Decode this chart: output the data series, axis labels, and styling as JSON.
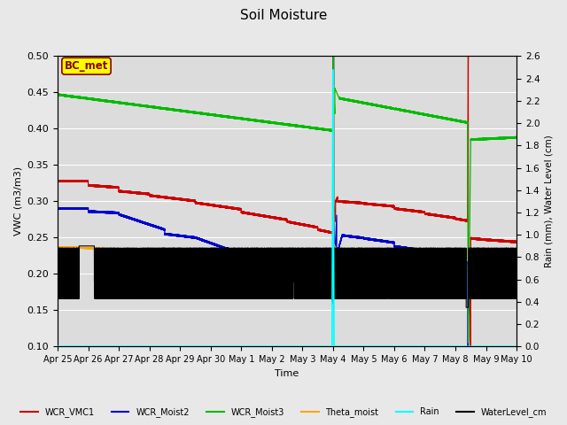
{
  "title": "Soil Moisture",
  "xlabel": "Time",
  "ylabel_left": "VWC (m3/m3)",
  "ylabel_right": "Rain (mm), Water Level (cm)",
  "ylim_left": [
    0.1,
    0.5
  ],
  "ylim_right": [
    0.0,
    2.6
  ],
  "x_tick_labels": [
    "Apr 25",
    "Apr 26",
    "Apr 27",
    "Apr 28",
    "Apr 29",
    "Apr 30",
    "May 1",
    "May 2",
    "May 3",
    "May 4",
    "May 5",
    "May 6",
    "May 7",
    "May 8",
    "May 9",
    "May 10"
  ],
  "annotation_text": "BC_met",
  "annotation_color": "#8B0000",
  "annotation_bg": "#FFFF00",
  "annotation_edge": "#8B0000",
  "colors": {
    "WCR_VMC1": "#CC0000",
    "WCR_Moist2": "#0000CC",
    "WCR_Moist3": "#00BB00",
    "Theta_moist": "#FFA500",
    "Rain": "#00FFFF",
    "WaterLevel_cm": "#000000"
  },
  "bg_color": "#DCDCDC",
  "fig_bg": "#E8E8E8"
}
